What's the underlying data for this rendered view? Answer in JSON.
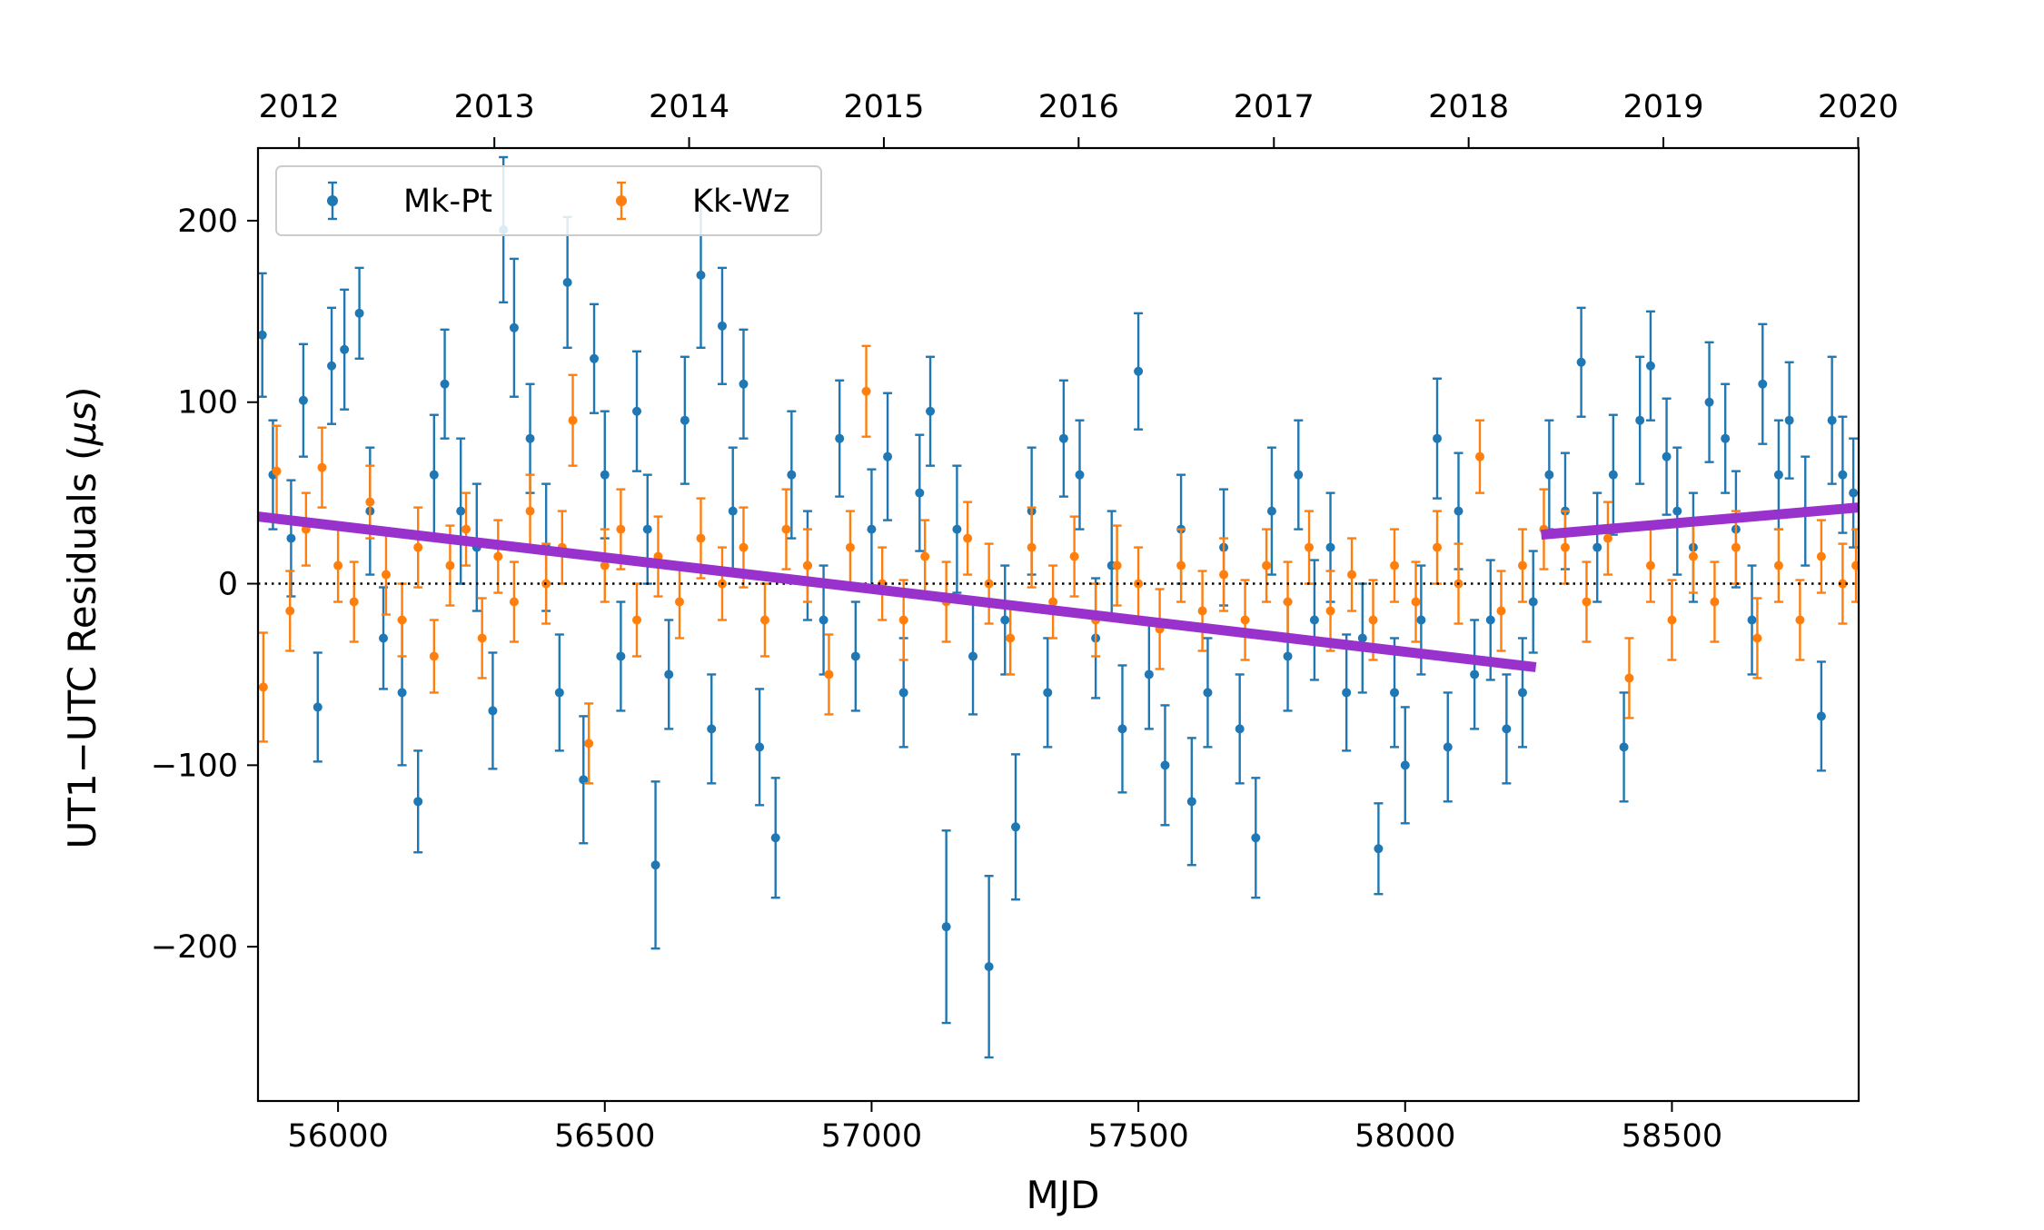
{
  "chart_data": {
    "type": "scatter",
    "xlabel": "MJD",
    "ylabel_prefix": "UT1−UTC Residuals (",
    "ylabel_unit_mu": "μ",
    "ylabel_unit_s": "s",
    "ylabel_suffix": ")",
    "xlim": [
      55850,
      58850
    ],
    "ylim": [
      -285,
      240
    ],
    "x_ticks": [
      56000,
      56500,
      57000,
      57500,
      58000,
      58500
    ],
    "x_tick_labels": [
      "56000",
      "56500",
      "57000",
      "57500",
      "58000",
      "58500"
    ],
    "y_ticks": [
      -200,
      -100,
      0,
      100,
      200
    ],
    "y_tick_labels": [
      "−200",
      "−100",
      "0",
      "100",
      "200"
    ],
    "top_axis": {
      "ticks": [
        55927,
        56293,
        56658,
        57023,
        57388,
        57754,
        58119,
        58484,
        58849
      ],
      "labels": [
        "2012",
        "2013",
        "2014",
        "2015",
        "2016",
        "2017",
        "2018",
        "2019",
        "2020"
      ]
    },
    "zero_line": {
      "y": 0,
      "style": "dotted",
      "color": "#000000"
    },
    "legend": {
      "placement": "top-left",
      "columns": 2
    },
    "series": [
      {
        "name": "Mk-Pt",
        "color": "#1f77b4",
        "marker": "point-with-errorbar",
        "points": [
          [
            55858,
            137,
            34
          ],
          [
            55878,
            60,
            30
          ],
          [
            55912,
            25,
            32
          ],
          [
            55935,
            101,
            31
          ],
          [
            55962,
            -68,
            30
          ],
          [
            55988,
            120,
            32
          ],
          [
            56012,
            129,
            33
          ],
          [
            56040,
            149,
            25
          ],
          [
            56060,
            40,
            35
          ],
          [
            56085,
            -30,
            28
          ],
          [
            56120,
            -60,
            40
          ],
          [
            56150,
            -120,
            28
          ],
          [
            56180,
            60,
            33
          ],
          [
            56200,
            110,
            30
          ],
          [
            56230,
            40,
            40
          ],
          [
            56260,
            20,
            35
          ],
          [
            56290,
            -70,
            32
          ],
          [
            56310,
            195,
            40
          ],
          [
            56330,
            141,
            38
          ],
          [
            56360,
            80,
            30
          ],
          [
            56390,
            20,
            35
          ],
          [
            56415,
            -60,
            32
          ],
          [
            56430,
            166,
            36
          ],
          [
            56460,
            -108,
            35
          ],
          [
            56480,
            124,
            30
          ],
          [
            56500,
            60,
            35
          ],
          [
            56530,
            -40,
            30
          ],
          [
            56560,
            95,
            33
          ],
          [
            56580,
            30,
            30
          ],
          [
            56595,
            -155,
            46
          ],
          [
            56620,
            -50,
            30
          ],
          [
            56650,
            90,
            35
          ],
          [
            56680,
            170,
            40
          ],
          [
            56700,
            -80,
            30
          ],
          [
            56720,
            142,
            32
          ],
          [
            56740,
            40,
            35
          ],
          [
            56760,
            110,
            30
          ],
          [
            56790,
            -90,
            32
          ],
          [
            56820,
            -140,
            33
          ],
          [
            56850,
            60,
            35
          ],
          [
            56880,
            10,
            30
          ],
          [
            56910,
            -20,
            30
          ],
          [
            56940,
            80,
            32
          ],
          [
            56970,
            -40,
            30
          ],
          [
            57000,
            30,
            33
          ],
          [
            57030,
            70,
            35
          ],
          [
            57060,
            -60,
            30
          ],
          [
            57090,
            50,
            32
          ],
          [
            57110,
            95,
            30
          ],
          [
            57140,
            -189,
            53
          ],
          [
            57160,
            30,
            35
          ],
          [
            57190,
            -40,
            32
          ],
          [
            57220,
            -211,
            50
          ],
          [
            57250,
            -20,
            30
          ],
          [
            57270,
            -134,
            40
          ],
          [
            57300,
            40,
            35
          ],
          [
            57330,
            -60,
            30
          ],
          [
            57360,
            80,
            32
          ],
          [
            57390,
            60,
            30
          ],
          [
            57420,
            -30,
            33
          ],
          [
            57450,
            10,
            30
          ],
          [
            57470,
            -80,
            35
          ],
          [
            57500,
            117,
            32
          ],
          [
            57520,
            -50,
            30
          ],
          [
            57550,
            -100,
            33
          ],
          [
            57580,
            30,
            30
          ],
          [
            57600,
            -120,
            35
          ],
          [
            57630,
            -60,
            30
          ],
          [
            57660,
            20,
            32
          ],
          [
            57690,
            -80,
            30
          ],
          [
            57720,
            -140,
            33
          ],
          [
            57750,
            40,
            35
          ],
          [
            57780,
            -40,
            30
          ],
          [
            57800,
            60,
            30
          ],
          [
            57830,
            -20,
            33
          ],
          [
            57860,
            20,
            30
          ],
          [
            57890,
            -60,
            32
          ],
          [
            57920,
            -30,
            30
          ],
          [
            57950,
            -146,
            25
          ],
          [
            57980,
            -60,
            30
          ],
          [
            58000,
            -100,
            32
          ],
          [
            58030,
            -20,
            30
          ],
          [
            58060,
            80,
            33
          ],
          [
            58080,
            -90,
            30
          ],
          [
            58100,
            40,
            32
          ],
          [
            58130,
            -50,
            30
          ],
          [
            58160,
            -20,
            33
          ],
          [
            58190,
            -80,
            30
          ],
          [
            58220,
            -60,
            30
          ],
          [
            58240,
            -10,
            28
          ],
          [
            58270,
            60,
            30
          ],
          [
            58300,
            40,
            32
          ],
          [
            58330,
            122,
            30
          ],
          [
            58360,
            20,
            30
          ],
          [
            58390,
            60,
            33
          ],
          [
            58410,
            -90,
            30
          ],
          [
            58440,
            90,
            35
          ],
          [
            58460,
            120,
            30
          ],
          [
            58490,
            70,
            32
          ],
          [
            58510,
            40,
            35
          ],
          [
            58540,
            20,
            30
          ],
          [
            58570,
            100,
            33
          ],
          [
            58600,
            80,
            30
          ],
          [
            58620,
            30,
            32
          ],
          [
            58650,
            -20,
            30
          ],
          [
            58670,
            110,
            33
          ],
          [
            58700,
            60,
            30
          ],
          [
            58720,
            90,
            32
          ],
          [
            58750,
            40,
            30
          ],
          [
            58780,
            -73,
            30
          ],
          [
            58800,
            90,
            35
          ],
          [
            58820,
            60,
            32
          ],
          [
            58840,
            50,
            30
          ]
        ]
      },
      {
        "name": "Kk-Wz",
        "color": "#ff7f0e",
        "marker": "point-with-errorbar",
        "points": [
          [
            55860,
            -57,
            30
          ],
          [
            55885,
            62,
            25
          ],
          [
            55910,
            -15,
            22
          ],
          [
            55940,
            30,
            20
          ],
          [
            55970,
            64,
            22
          ],
          [
            56000,
            10,
            20
          ],
          [
            56030,
            -10,
            22
          ],
          [
            56060,
            45,
            20
          ],
          [
            56090,
            5,
            22
          ],
          [
            56120,
            -20,
            20
          ],
          [
            56150,
            20,
            22
          ],
          [
            56180,
            -40,
            20
          ],
          [
            56210,
            10,
            22
          ],
          [
            56240,
            30,
            20
          ],
          [
            56270,
            -30,
            22
          ],
          [
            56300,
            15,
            20
          ],
          [
            56330,
            -10,
            22
          ],
          [
            56360,
            40,
            20
          ],
          [
            56390,
            0,
            22
          ],
          [
            56420,
            20,
            20
          ],
          [
            56440,
            90,
            25
          ],
          [
            56470,
            -88,
            22
          ],
          [
            56500,
            10,
            20
          ],
          [
            56530,
            30,
            22
          ],
          [
            56560,
            -20,
            20
          ],
          [
            56600,
            15,
            22
          ],
          [
            56640,
            -10,
            20
          ],
          [
            56680,
            25,
            22
          ],
          [
            56720,
            0,
            20
          ],
          [
            56760,
            20,
            22
          ],
          [
            56800,
            -20,
            20
          ],
          [
            56840,
            30,
            22
          ],
          [
            56880,
            10,
            20
          ],
          [
            56920,
            -50,
            22
          ],
          [
            56960,
            20,
            20
          ],
          [
            56990,
            106,
            25
          ],
          [
            57020,
            0,
            20
          ],
          [
            57060,
            -20,
            22
          ],
          [
            57100,
            15,
            20
          ],
          [
            57140,
            -10,
            22
          ],
          [
            57180,
            25,
            20
          ],
          [
            57220,
            0,
            22
          ],
          [
            57260,
            -30,
            20
          ],
          [
            57300,
            20,
            22
          ],
          [
            57340,
            -10,
            20
          ],
          [
            57380,
            15,
            22
          ],
          [
            57420,
            -20,
            20
          ],
          [
            57460,
            10,
            22
          ],
          [
            57500,
            0,
            20
          ],
          [
            57540,
            -25,
            22
          ],
          [
            57580,
            10,
            20
          ],
          [
            57620,
            -15,
            22
          ],
          [
            57660,
            5,
            20
          ],
          [
            57700,
            -20,
            22
          ],
          [
            57740,
            10,
            20
          ],
          [
            57780,
            -10,
            22
          ],
          [
            57820,
            20,
            20
          ],
          [
            57860,
            -15,
            22
          ],
          [
            57900,
            5,
            20
          ],
          [
            57940,
            -20,
            22
          ],
          [
            57980,
            10,
            20
          ],
          [
            58020,
            -10,
            22
          ],
          [
            58060,
            20,
            20
          ],
          [
            58100,
            0,
            22
          ],
          [
            58140,
            70,
            20
          ],
          [
            58180,
            -15,
            22
          ],
          [
            58220,
            10,
            20
          ],
          [
            58260,
            30,
            22
          ],
          [
            58300,
            20,
            20
          ],
          [
            58340,
            -10,
            22
          ],
          [
            58380,
            25,
            20
          ],
          [
            58420,
            -52,
            22
          ],
          [
            58460,
            10,
            20
          ],
          [
            58500,
            -20,
            22
          ],
          [
            58540,
            15,
            20
          ],
          [
            58580,
            -10,
            22
          ],
          [
            58620,
            20,
            20
          ],
          [
            58660,
            -30,
            22
          ],
          [
            58700,
            10,
            20
          ],
          [
            58740,
            -20,
            22
          ],
          [
            58780,
            15,
            20
          ],
          [
            58820,
            0,
            22
          ],
          [
            58845,
            10,
            20
          ]
        ]
      }
    ],
    "trend_lines": [
      {
        "color": "#9932cc",
        "points": [
          [
            55850,
            37
          ],
          [
            58245,
            -46
          ]
        ]
      },
      {
        "color": "#9932cc",
        "points": [
          [
            58255,
            27
          ],
          [
            58850,
            42
          ]
        ]
      }
    ]
  }
}
